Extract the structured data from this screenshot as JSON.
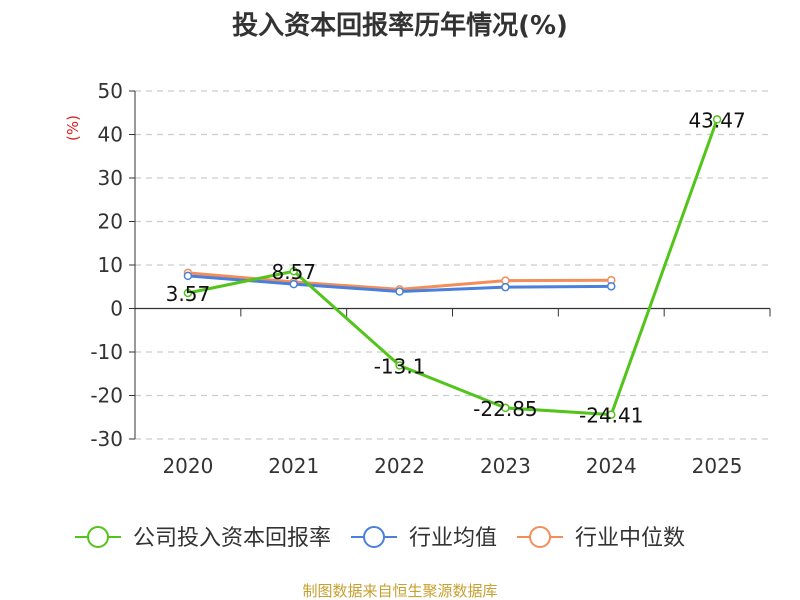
{
  "chart_data": {
    "type": "line",
    "title": "投入资本回报率历年情况(%)",
    "ylabel": "(%)",
    "xlabel": "",
    "categories": [
      "2020",
      "2021",
      "2022",
      "2023",
      "2024",
      "2025"
    ],
    "ylim": [
      -30,
      50
    ],
    "yticks": [
      -30,
      -20,
      -10,
      0,
      10,
      20,
      30,
      40,
      50
    ],
    "grid": true,
    "legend_position": "bottom",
    "series": [
      {
        "name": "公司投入资本回报率",
        "color": "#52c41a",
        "values": [
          3.57,
          8.57,
          -13.1,
          -22.85,
          -24.41,
          43.47
        ],
        "labels": [
          "3.57",
          "8.57",
          "-13.1",
          "-22.85",
          "-24.41",
          "43.47"
        ]
      },
      {
        "name": "行业均值",
        "color": "#4a7fdb",
        "values": [
          7.5,
          5.6,
          3.9,
          4.9,
          5.1,
          null
        ]
      },
      {
        "name": "行业中位数",
        "color": "#f28e5c",
        "values": [
          8.2,
          6.1,
          4.4,
          6.4,
          6.5,
          null
        ]
      }
    ]
  },
  "footer": {
    "source": "制图数据来自恒生聚源数据库"
  }
}
